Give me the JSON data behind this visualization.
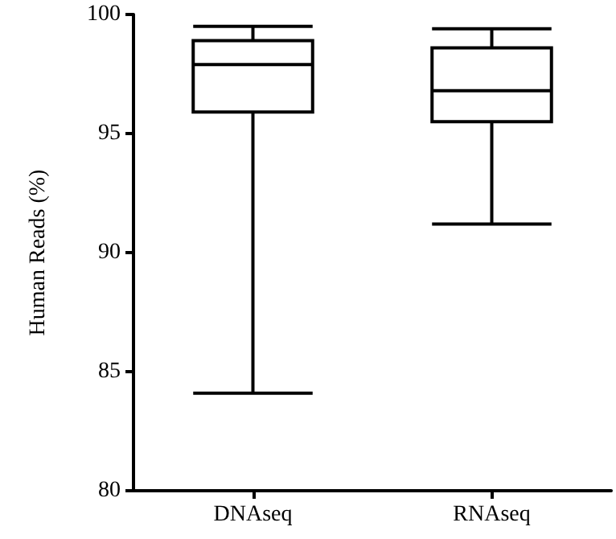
{
  "chart_data": {
    "type": "box",
    "ylabel": "Human Reads (%)",
    "categories": [
      "DNAseq",
      "RNAseq"
    ],
    "boxes": [
      {
        "low": 84.1,
        "q1": 95.9,
        "median": 97.9,
        "q3": 98.9,
        "high": 99.5
      },
      {
        "low": 91.2,
        "q1": 95.5,
        "median": 96.8,
        "q3": 98.6,
        "high": 99.4
      }
    ],
    "color": "#000000",
    "ylim": [
      80,
      100
    ],
    "yticks": [
      80,
      85,
      90,
      95,
      100
    ],
    "grid": false
  }
}
